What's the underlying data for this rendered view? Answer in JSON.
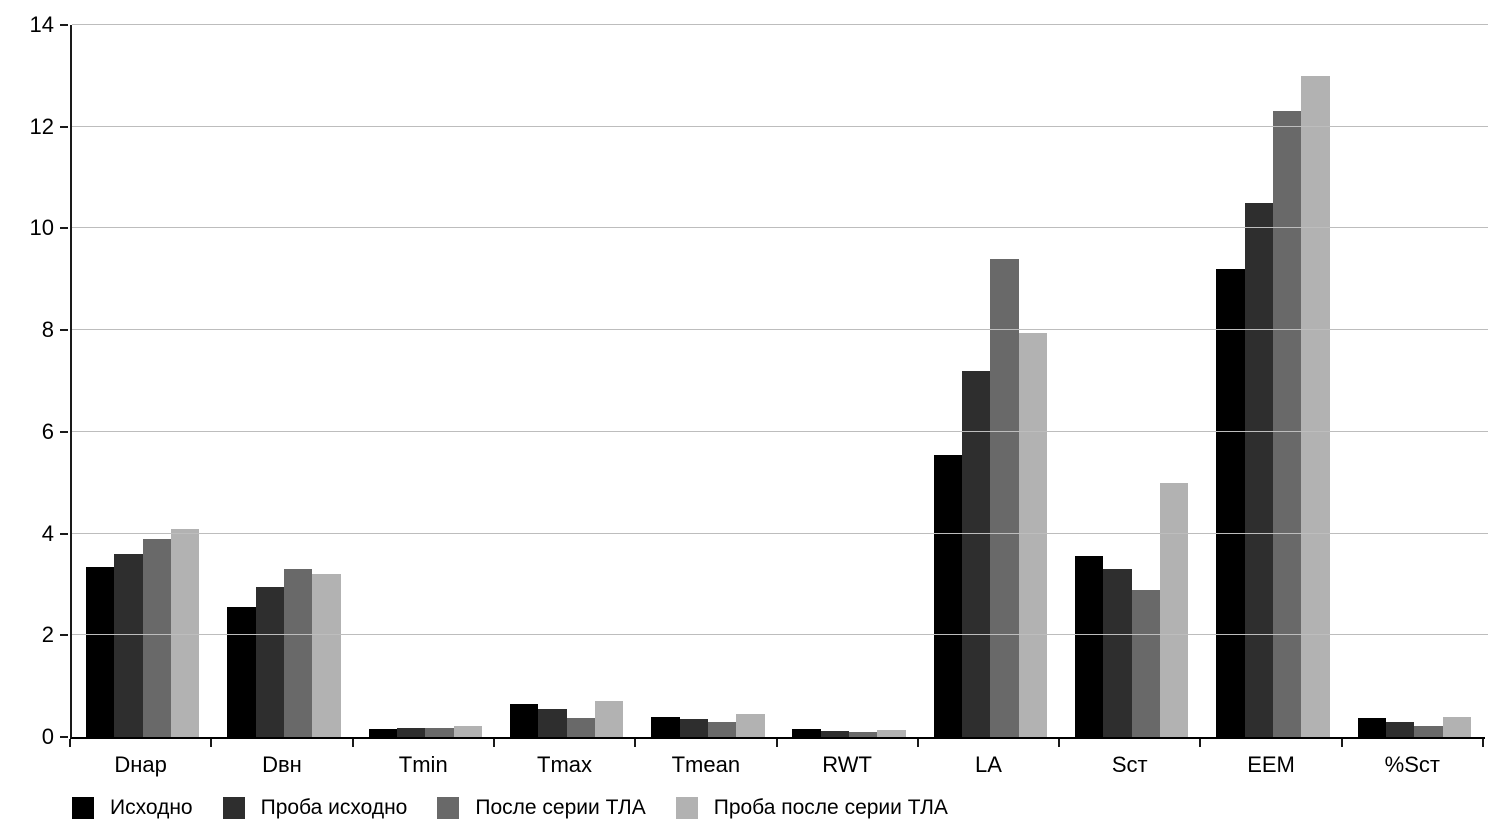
{
  "chart_data": {
    "type": "bar",
    "title": "",
    "xlabel": "",
    "ylabel": "",
    "categories": [
      "Dнар",
      "Dвн",
      "Tmin",
      "Tmax",
      "Tmean",
      "RWT",
      "LA",
      "Sст",
      "EEM",
      "%Sст"
    ],
    "series": [
      {
        "name": "Исходно",
        "color": "#000000",
        "values": [
          3.35,
          2.55,
          0.16,
          0.64,
          0.4,
          0.15,
          5.55,
          3.55,
          9.2,
          0.38
        ]
      },
      {
        "name": "Проба исходно",
        "color": "#2e2e2e",
        "values": [
          3.6,
          2.95,
          0.18,
          0.56,
          0.36,
          0.12,
          7.2,
          3.3,
          10.5,
          0.29
        ]
      },
      {
        "name": "После серии ТЛА",
        "color": "#696969",
        "values": [
          3.9,
          3.3,
          0.18,
          0.37,
          0.29,
          0.09,
          9.4,
          2.9,
          12.3,
          0.22
        ]
      },
      {
        "name": "Проба после серии ТЛА",
        "color": "#b2b2b2",
        "values": [
          4.1,
          3.2,
          0.21,
          0.7,
          0.45,
          0.14,
          7.95,
          5.0,
          13.0,
          0.39
        ]
      }
    ],
    "ylim": [
      0,
      14
    ],
    "ytick_step": 2,
    "ytick_labels": [
      "0",
      "2",
      "4",
      "6",
      "8",
      "10",
      "12",
      "14"
    ],
    "grid": "horizontal-only",
    "legend_position": "bottom-left",
    "colors": {
      "gridline": "#bdbdbd",
      "axis": "#1a1a1a",
      "background": "#ffffff",
      "text": "#000000"
    }
  }
}
